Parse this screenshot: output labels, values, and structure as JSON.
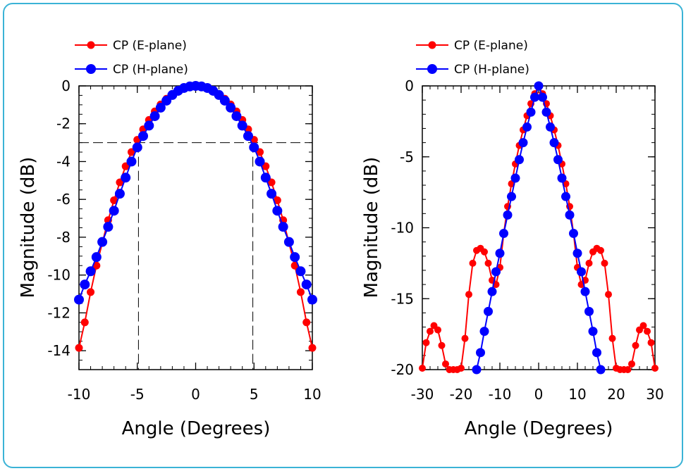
{
  "colors": {
    "e_plane": "#ff0000",
    "h_plane": "#0000ff",
    "frame": "#3bb3d6"
  },
  "chart_data": [
    {
      "type": "line",
      "xlabel": "Angle (Degrees)",
      "ylabel": "Magnitude (dB)",
      "xlim": [
        -10,
        10
      ],
      "ylim": [
        -15,
        0
      ],
      "xticks": [
        -10,
        -5,
        0,
        5,
        10
      ],
      "xtick_labels": [
        "-10",
        "-5",
        "0",
        "5",
        "10"
      ],
      "yticks": [
        0,
        -2,
        -4,
        -6,
        -8,
        -10,
        -12,
        -14
      ],
      "ytick_labels": [
        "0",
        "-2",
        "-4",
        "-6",
        "-8",
        "-10",
        "-12",
        "-14"
      ],
      "legend_position": "top-left",
      "reference_lines": {
        "y": -3,
        "x": [
          -4.9,
          4.9
        ]
      },
      "series": [
        {
          "name": "CP (E-plane)",
          "color": "#ff0000",
          "x": [
            -10,
            -9.5,
            -9,
            -8.5,
            -8,
            -7.5,
            -7,
            -6.5,
            -6,
            -5.5,
            -5,
            -4.5,
            -4,
            -3.5,
            -3,
            -2.5,
            -2,
            -1.5,
            -1,
            -0.5,
            0,
            0.5,
            1,
            1.5,
            2,
            2.5,
            3,
            3.5,
            4,
            4.5,
            5,
            5.5,
            6,
            6.5,
            7,
            7.5,
            8,
            8.5,
            9,
            9.5,
            10
          ],
          "y": [
            -13.85,
            -12.5,
            -10.9,
            -9.5,
            -8.3,
            -7.1,
            -6.05,
            -5.1,
            -4.25,
            -3.5,
            -2.85,
            -2.3,
            -1.8,
            -1.35,
            -0.98,
            -0.68,
            -0.44,
            -0.25,
            -0.11,
            -0.03,
            0,
            -0.03,
            -0.11,
            -0.25,
            -0.44,
            -0.68,
            -0.98,
            -1.35,
            -1.8,
            -2.3,
            -2.85,
            -3.5,
            -4.25,
            -5.1,
            -6.05,
            -7.1,
            -8.3,
            -9.5,
            -10.9,
            -12.5,
            -13.85
          ]
        },
        {
          "name": "CP (H-plane)",
          "color": "#0000ff",
          "x": [
            -10,
            -9.5,
            -9,
            -8.5,
            -8,
            -7.5,
            -7,
            -6.5,
            -6,
            -5.5,
            -5,
            -4.5,
            -4,
            -3.5,
            -3,
            -2.5,
            -2,
            -1.5,
            -1,
            -0.5,
            0,
            0.5,
            1,
            1.5,
            2,
            2.5,
            3,
            3.5,
            4,
            4.5,
            5,
            5.5,
            6,
            6.5,
            7,
            7.5,
            8,
            8.5,
            9,
            9.5,
            10
          ],
          "y": [
            -11.3,
            -10.5,
            -9.8,
            -9.05,
            -8.25,
            -7.45,
            -6.6,
            -5.7,
            -4.85,
            -4.0,
            -3.25,
            -2.65,
            -2.1,
            -1.6,
            -1.15,
            -0.78,
            -0.48,
            -0.26,
            -0.11,
            -0.03,
            0,
            -0.03,
            -0.11,
            -0.26,
            -0.48,
            -0.78,
            -1.15,
            -1.6,
            -2.1,
            -2.65,
            -3.25,
            -4.0,
            -4.85,
            -5.7,
            -6.6,
            -7.45,
            -8.25,
            -9.05,
            -9.8,
            -10.5,
            -11.3
          ]
        }
      ]
    },
    {
      "type": "line",
      "xlabel": "Angle (Degrees)",
      "ylabel": "Magnitude (dB)",
      "xlim": [
        -30,
        30
      ],
      "ylim": [
        -20,
        0
      ],
      "xticks": [
        -30,
        -20,
        -10,
        0,
        10,
        20,
        30
      ],
      "xtick_labels": [
        "-30",
        "-20",
        "-10",
        "0",
        "10",
        "20",
        "30"
      ],
      "yticks": [
        0,
        -5,
        -10,
        -15,
        -20
      ],
      "ytick_labels": [
        "0",
        "-5",
        "-10",
        "-15",
        "-20"
      ],
      "legend_position": "top-left",
      "series": [
        {
          "name": "CP (E-plane)",
          "color": "#ff0000",
          "x": [
            -30,
            -29,
            -28,
            -27,
            -26,
            -25,
            -24,
            -23,
            -22,
            -21,
            -20,
            -19,
            -18,
            -17,
            -16,
            -15,
            -14,
            -13,
            -12,
            -11,
            -10,
            -9,
            -8,
            -7,
            -6,
            -5,
            -4,
            -3,
            -2,
            -1,
            0,
            1,
            2,
            3,
            4,
            5,
            6,
            7,
            8,
            9,
            10,
            11,
            12,
            13,
            14,
            15,
            16,
            17,
            18,
            19,
            20,
            21,
            22,
            23,
            24,
            25,
            26,
            27,
            28,
            29,
            30
          ],
          "y": [
            -19.9,
            -18.1,
            -17.3,
            -16.9,
            -17.2,
            -18.3,
            -19.6,
            -20,
            -20,
            -20,
            -19.9,
            -17.8,
            -14.7,
            -12.5,
            -11.6,
            -11.45,
            -11.7,
            -12.5,
            -13.7,
            -14.0,
            -12.8,
            -10.4,
            -8.5,
            -6.9,
            -5.5,
            -4.2,
            -3.1,
            -2.1,
            -1.25,
            -0.55,
            0,
            -0.55,
            -1.25,
            -2.1,
            -3.1,
            -4.2,
            -5.5,
            -6.9,
            -8.5,
            -10.4,
            -12.8,
            -14.0,
            -13.7,
            -12.5,
            -11.7,
            -11.45,
            -11.6,
            -12.5,
            -14.7,
            -17.8,
            -19.9,
            -20,
            -20,
            -20,
            -19.6,
            -18.3,
            -17.2,
            -16.9,
            -17.3,
            -18.1,
            -19.9
          ]
        },
        {
          "name": "CP (H-plane)",
          "color": "#0000ff",
          "x": [
            -16,
            -15,
            -14,
            -13,
            -12,
            -11,
            -10,
            -9,
            -8,
            -7,
            -6,
            -5,
            -4,
            -3,
            -2,
            -1,
            0,
            1,
            2,
            3,
            4,
            5,
            6,
            7,
            8,
            9,
            10,
            11,
            12,
            13,
            14,
            15,
            16
          ],
          "y": [
            -20,
            -18.8,
            -17.3,
            -15.9,
            -14.5,
            -13.1,
            -11.8,
            -10.4,
            -9.1,
            -7.8,
            -6.5,
            -5.2,
            -4.0,
            -2.9,
            -1.85,
            -0.8,
            0,
            -0.8,
            -1.85,
            -2.9,
            -4.0,
            -5.2,
            -6.5,
            -7.8,
            -9.1,
            -10.4,
            -11.8,
            -13.1,
            -14.5,
            -15.9,
            -17.3,
            -18.8,
            -20
          ]
        }
      ]
    }
  ]
}
